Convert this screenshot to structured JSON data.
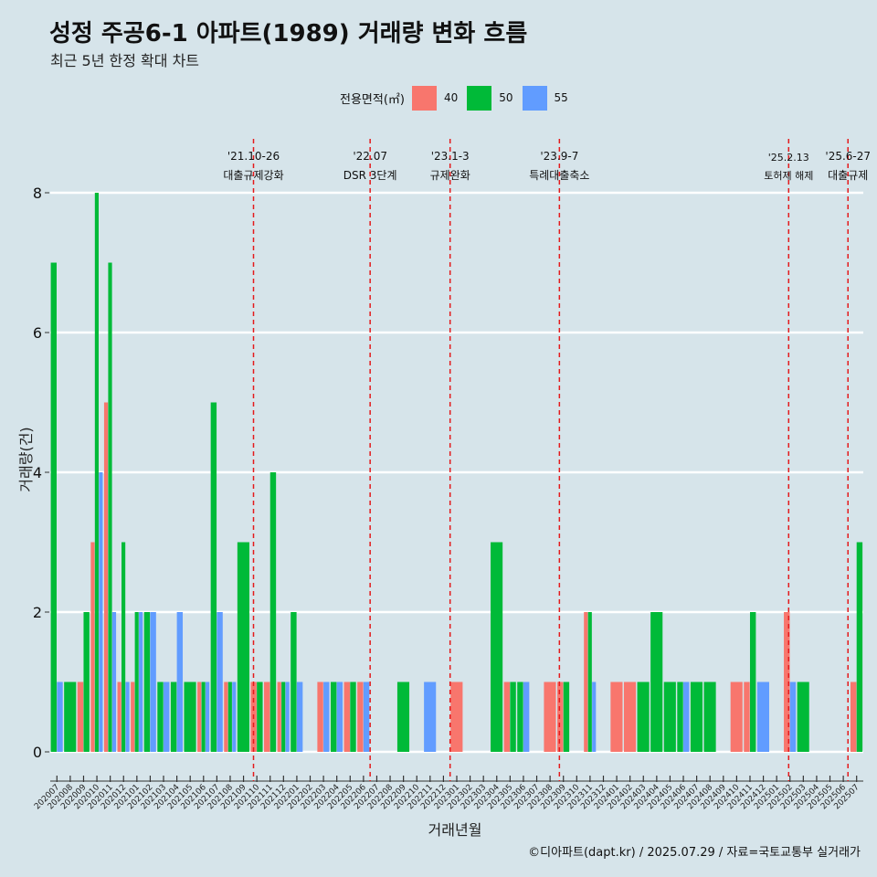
{
  "title": "성정 주공6-1 아파트(1989) 거래량 변화 흐름",
  "subtitle": "최근 5년 한정 확대 차트",
  "caption": "©디아파트(dapt.kr) / 2025.07.29 / 자료=국토교통부 실거래가",
  "legend": {
    "title": "전용면적(㎡)",
    "items": [
      {
        "label": "40",
        "color": "#f8766d"
      },
      {
        "label": "50",
        "color": "#00ba38"
      },
      {
        "label": "55",
        "color": "#619cff"
      }
    ]
  },
  "chart_data": {
    "type": "bar",
    "xlabel": "거래년월",
    "ylabel": "거래량(건)",
    "ylim": [
      0,
      8.6
    ],
    "yticks": [
      0,
      2,
      4,
      6,
      8
    ],
    "grid": true,
    "legend_position": "top",
    "categories": [
      "202007",
      "202008",
      "202009",
      "202010",
      "202011",
      "202012",
      "202101",
      "202102",
      "202103",
      "202104",
      "202105",
      "202106",
      "202107",
      "202108",
      "202109",
      "202110",
      "202111",
      "202112",
      "202201",
      "202202",
      "202203",
      "202204",
      "202205",
      "202206",
      "202207",
      "202208",
      "202209",
      "202210",
      "202211",
      "202212",
      "202301",
      "202302",
      "202303",
      "202304",
      "202305",
      "202306",
      "202307",
      "202308",
      "202309",
      "202310",
      "202311",
      "202312",
      "202401",
      "202402",
      "202403",
      "202404",
      "202405",
      "202406",
      "202407",
      "202408",
      "202409",
      "202410",
      "202411",
      "202412",
      "202501",
      "202502",
      "202503",
      "202504",
      "202505",
      "202506",
      "202507"
    ],
    "tick_labels": [
      "202007",
      "202008",
      "202009",
      "202010",
      "202011",
      "202012",
      "202101",
      "202102",
      "202103",
      "202104",
      "202105",
      "202106",
      "202107",
      "202108",
      "202109",
      "202110",
      "202111",
      "202112",
      "202201",
      "202202",
      "202203",
      "202204",
      "202205",
      "202206",
      "202207",
      "202208",
      "202209",
      "202210",
      "202211",
      "202212",
      "202301",
      "202302",
      "202303",
      "202304",
      "202305",
      "202306",
      "202307",
      "202308",
      "202309",
      "202310",
      "202311",
      "202312",
      "202401",
      "202402",
      "202403",
      "202404",
      "202405",
      "202406",
      "202407",
      "202408",
      "202409",
      "202410",
      "202411",
      "202412",
      "202501",
      "202502",
      "202503",
      "202504",
      "202505",
      "202506",
      "202507"
    ],
    "bars": [
      {
        "month": "202007",
        "area": "50",
        "value": 7
      },
      {
        "month": "202007",
        "area": "55",
        "value": 1
      },
      {
        "month": "202008",
        "area": "50",
        "value": 1
      },
      {
        "month": "202009",
        "area": "40",
        "value": 1
      },
      {
        "month": "202009",
        "area": "50",
        "value": 2
      },
      {
        "month": "202010",
        "area": "40",
        "value": 3
      },
      {
        "month": "202010",
        "area": "50",
        "value": 8
      },
      {
        "month": "202010",
        "area": "55",
        "value": 4
      },
      {
        "month": "202011",
        "area": "40",
        "value": 5
      },
      {
        "month": "202011",
        "area": "50",
        "value": 7
      },
      {
        "month": "202011",
        "area": "55",
        "value": 2
      },
      {
        "month": "202012",
        "area": "40",
        "value": 1
      },
      {
        "month": "202012",
        "area": "50",
        "value": 3
      },
      {
        "month": "202012",
        "area": "55",
        "value": 1
      },
      {
        "month": "202101",
        "area": "40",
        "value": 1
      },
      {
        "month": "202101",
        "area": "50",
        "value": 2
      },
      {
        "month": "202101",
        "area": "55",
        "value": 2
      },
      {
        "month": "202102",
        "area": "50",
        "value": 2
      },
      {
        "month": "202102",
        "area": "55",
        "value": 2
      },
      {
        "month": "202103",
        "area": "50",
        "value": 1
      },
      {
        "month": "202103",
        "area": "55",
        "value": 1
      },
      {
        "month": "202104",
        "area": "50",
        "value": 1
      },
      {
        "month": "202104",
        "area": "55",
        "value": 2
      },
      {
        "month": "202105",
        "area": "50",
        "value": 1
      },
      {
        "month": "202106",
        "area": "40",
        "value": 1
      },
      {
        "month": "202106",
        "area": "50",
        "value": 1
      },
      {
        "month": "202106",
        "area": "55",
        "value": 1
      },
      {
        "month": "202107",
        "area": "50",
        "value": 5
      },
      {
        "month": "202107",
        "area": "55",
        "value": 2
      },
      {
        "month": "202108",
        "area": "40",
        "value": 1
      },
      {
        "month": "202108",
        "area": "50",
        "value": 1
      },
      {
        "month": "202108",
        "area": "55",
        "value": 1
      },
      {
        "month": "202109",
        "area": "50",
        "value": 3
      },
      {
        "month": "202110",
        "area": "40",
        "value": 1
      },
      {
        "month": "202110",
        "area": "50",
        "value": 1
      },
      {
        "month": "202111",
        "area": "40",
        "value": 1
      },
      {
        "month": "202111",
        "area": "50",
        "value": 4
      },
      {
        "month": "202112",
        "area": "40",
        "value": 1
      },
      {
        "month": "202112",
        "area": "50",
        "value": 1
      },
      {
        "month": "202112",
        "area": "55",
        "value": 1
      },
      {
        "month": "202201",
        "area": "50",
        "value": 2
      },
      {
        "month": "202201",
        "area": "55",
        "value": 1
      },
      {
        "month": "202203",
        "area": "40",
        "value": 1
      },
      {
        "month": "202203",
        "area": "55",
        "value": 1
      },
      {
        "month": "202204",
        "area": "50",
        "value": 1
      },
      {
        "month": "202204",
        "area": "55",
        "value": 1
      },
      {
        "month": "202205",
        "area": "40",
        "value": 1
      },
      {
        "month": "202205",
        "area": "50",
        "value": 1
      },
      {
        "month": "202206",
        "area": "40",
        "value": 1
      },
      {
        "month": "202206",
        "area": "55",
        "value": 1
      },
      {
        "month": "202209",
        "area": "50",
        "value": 1
      },
      {
        "month": "202211",
        "area": "55",
        "value": 1
      },
      {
        "month": "202301",
        "area": "40",
        "value": 1
      },
      {
        "month": "202304",
        "area": "50",
        "value": 3
      },
      {
        "month": "202305",
        "area": "40",
        "value": 1
      },
      {
        "month": "202305",
        "area": "50",
        "value": 1
      },
      {
        "month": "202306",
        "area": "50",
        "value": 1
      },
      {
        "month": "202306",
        "area": "55",
        "value": 1
      },
      {
        "month": "202308",
        "area": "40",
        "value": 1
      },
      {
        "month": "202309",
        "area": "40",
        "value": 1
      },
      {
        "month": "202309",
        "area": "50",
        "value": 1
      },
      {
        "month": "202311",
        "area": "40",
        "value": 2
      },
      {
        "month": "202311",
        "area": "50",
        "value": 2
      },
      {
        "month": "202311",
        "area": "55",
        "value": 1
      },
      {
        "month": "202401",
        "area": "40",
        "value": 1
      },
      {
        "month": "202402",
        "area": "40",
        "value": 1
      },
      {
        "month": "202403",
        "area": "50",
        "value": 1
      },
      {
        "month": "202404",
        "area": "50",
        "value": 2
      },
      {
        "month": "202405",
        "area": "50",
        "value": 1
      },
      {
        "month": "202406",
        "area": "50",
        "value": 1
      },
      {
        "month": "202406",
        "area": "55",
        "value": 1
      },
      {
        "month": "202407",
        "area": "50",
        "value": 1
      },
      {
        "month": "202408",
        "area": "50",
        "value": 1
      },
      {
        "month": "202410",
        "area": "40",
        "value": 1
      },
      {
        "month": "202411",
        "area": "40",
        "value": 1
      },
      {
        "month": "202411",
        "area": "50",
        "value": 2
      },
      {
        "month": "202412",
        "area": "55",
        "value": 1
      },
      {
        "month": "202502",
        "area": "40",
        "value": 2
      },
      {
        "month": "202502",
        "area": "55",
        "value": 1
      },
      {
        "month": "202503",
        "area": "50",
        "value": 1
      },
      {
        "month": "202507",
        "area": "40",
        "value": 1
      },
      {
        "month": "202507",
        "area": "50",
        "value": 3
      }
    ],
    "events": [
      {
        "date": "'21.10-26",
        "label": "대출규제강화",
        "month": "202110",
        "offset": 0.25
      },
      {
        "date": "'22.07",
        "label": "DSR 3단계",
        "month": "202207",
        "offset": 0.0
      },
      {
        "date": "'23.1-3",
        "label": "규제완화",
        "month": "202301",
        "offset": 0.0
      },
      {
        "date": "'23.9-7",
        "label": "특례대출축소",
        "month": "202309",
        "offset": 0.2
      },
      {
        "date": "'25.2.13",
        "label": "토허제 해제",
        "month": "202502",
        "offset": 0.4
      },
      {
        "date": "'25.6-27",
        "label": "대출규제",
        "month": "202506",
        "offset": 0.85
      }
    ]
  }
}
